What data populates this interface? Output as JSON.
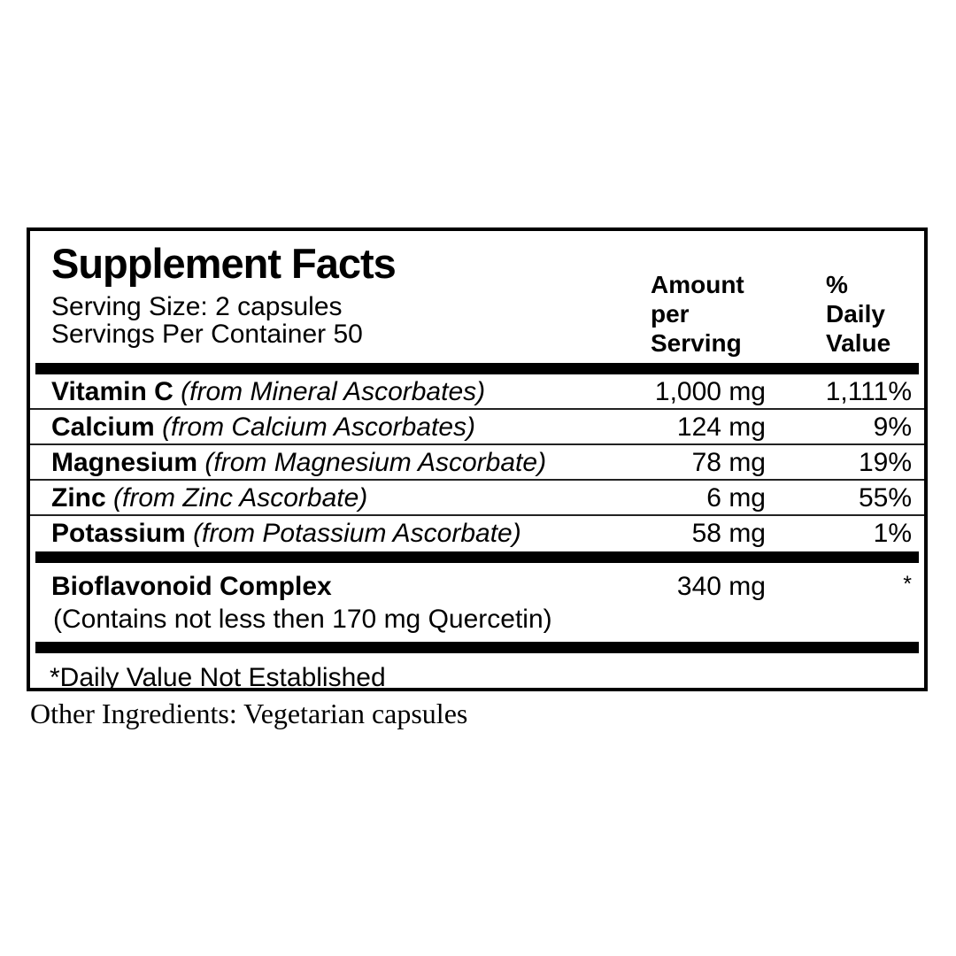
{
  "label": {
    "title": "Supplement Facts",
    "serving_size": "Serving Size: 2 capsules",
    "servings_per_container": "Servings Per Container 50",
    "columns": {
      "amount": "Amount per Serving",
      "daily_value": "% Daily Value"
    },
    "nutrients": [
      {
        "name": "Vitamin C",
        "source": "(from Mineral Ascorbates)",
        "amount": "1,000 mg",
        "dv": "1,111%"
      },
      {
        "name": "Calcium",
        "source": "(from Calcium Ascorbates)",
        "amount": "124 mg",
        "dv": "9%"
      },
      {
        "name": "Magnesium",
        "source": "(from Magnesium Ascorbate)",
        "amount": "78 mg",
        "dv": "19%"
      },
      {
        "name": "Zinc",
        "source": "(from Zinc Ascorbate)",
        "amount": "6 mg",
        "dv": "55%"
      },
      {
        "name": "Potassium",
        "source": "(from Potassium Ascorbate)",
        "amount": "58 mg",
        "dv": "1%"
      }
    ],
    "complex": {
      "name": "Bioflavonoid Complex",
      "detail": "(Contains not less then 170 mg Quercetin)",
      "amount": "340 mg",
      "dv": "*"
    },
    "footnote": "*Daily Value Not Established"
  },
  "other_ingredients": "Other Ingredients: Vegetarian capsules",
  "colors": {
    "text": "#000000",
    "background": "#ffffff",
    "rule": "#222222"
  }
}
